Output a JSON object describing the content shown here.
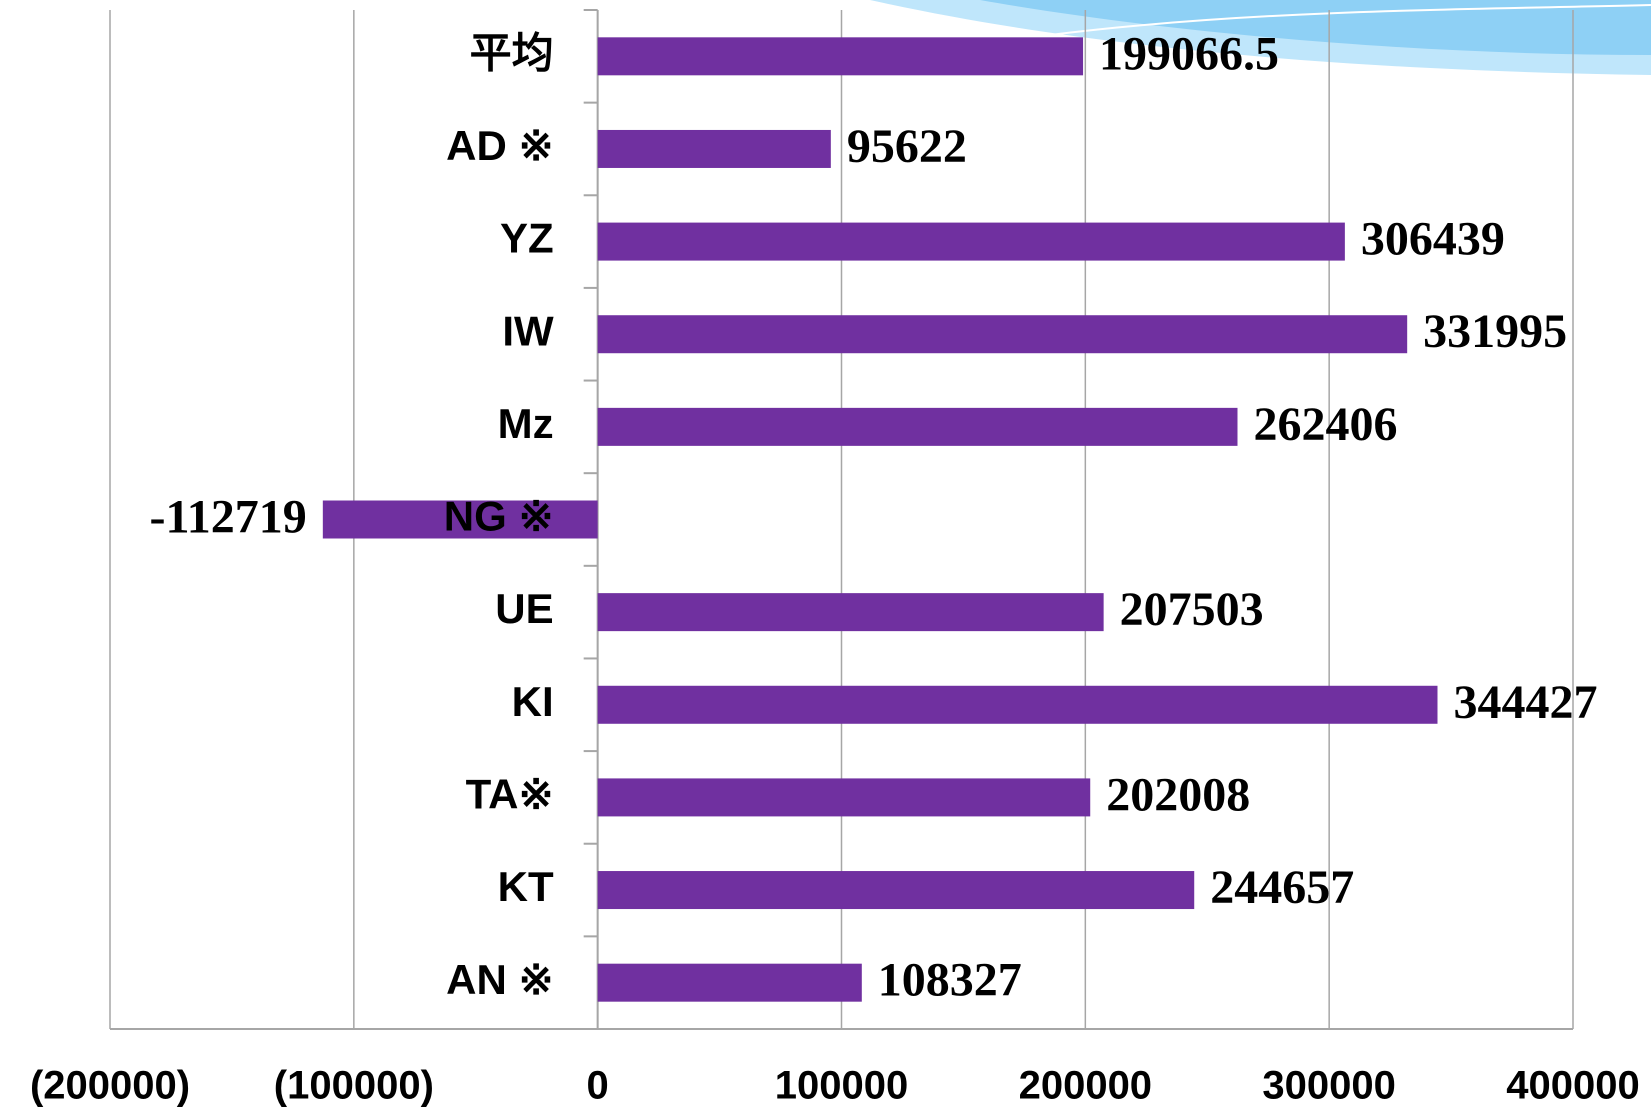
{
  "chart_data": {
    "type": "bar",
    "orientation": "horizontal",
    "categories": [
      "平均",
      "AD ※",
      "YZ",
      "IW",
      "Mz",
      "NG ※",
      "UE",
      "KI",
      "TA※",
      "KT",
      "AN ※"
    ],
    "values": [
      199066.5,
      95622,
      306439,
      331995,
      262406,
      -112719,
      207503,
      344427,
      202008,
      244657,
      108327
    ],
    "color": "#7030a0",
    "xlim": [
      -200000,
      400000
    ],
    "xticks": [
      {
        "value": -200000,
        "label": "(200000)"
      },
      {
        "value": -100000,
        "label": "(100000)"
      },
      0,
      100000,
      200000,
      300000,
      400000
    ],
    "grid": true,
    "negative_tick_color": "#ff0000",
    "negative_label_color": "#2e7d32"
  }
}
